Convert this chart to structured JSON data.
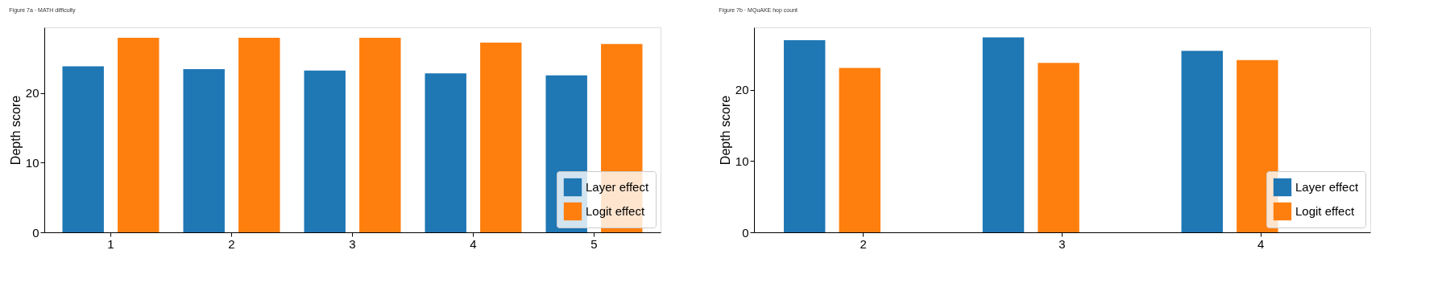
{
  "chart_data": [
    {
      "type": "bar",
      "title": "Figure 7a · MATH difficulty",
      "ylabel": "Depth score",
      "categories": [
        "1",
        "2",
        "3",
        "4",
        "5"
      ],
      "ylim": [
        0,
        29.4
      ],
      "yticks": [
        0,
        10,
        20
      ],
      "grid": false,
      "legend": "bottom right",
      "series": [
        {
          "name": "Layer effect",
          "color": "#1f77b4",
          "values": [
            23.8,
            23.4,
            23.2,
            22.8,
            22.5
          ]
        },
        {
          "name": "Logit effect",
          "color": "#ff7f0e",
          "values": [
            27.9,
            27.9,
            27.9,
            27.2,
            27.0
          ]
        }
      ]
    },
    {
      "type": "bar",
      "title": "Figure 7b · MQuAKE hop count",
      "ylabel": "Depth score",
      "categories": [
        "2",
        "3",
        "4"
      ],
      "ylim": [
        0,
        28.8
      ],
      "yticks": [
        0,
        10,
        20
      ],
      "grid": false,
      "legend": "bottom right",
      "series": [
        {
          "name": "Layer effect",
          "color": "#1f77b4",
          "values": [
            27.0,
            27.4,
            25.5
          ]
        },
        {
          "name": "Logit effect",
          "color": "#ff7f0e",
          "values": [
            23.1,
            23.8,
            24.2
          ]
        }
      ]
    }
  ]
}
